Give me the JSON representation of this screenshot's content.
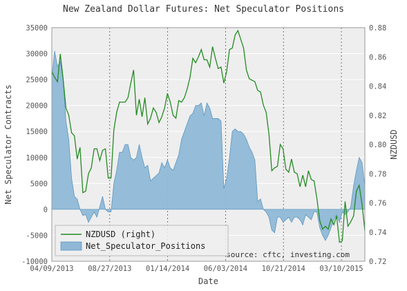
{
  "chart_data": {
    "type": "area",
    "title": "New Zealand Dollar Futures: Net Speculator Positions",
    "xlabel": "Date",
    "ylabel": "Net Speculator Contracts",
    "y2label": "NZDUSD",
    "x_tick_labels": [
      "04/09/2013",
      "08/27/2013",
      "01/14/2014",
      "06/03/2014",
      "10/21/2014",
      "03/10/2015"
    ],
    "ylim": [
      -10000,
      35000
    ],
    "y_ticks": [
      -10000,
      -5000,
      0,
      5000,
      10000,
      15000,
      20000,
      25000,
      30000,
      35000
    ],
    "y2lim": [
      0.72,
      0.88
    ],
    "y2_ticks": [
      0.72,
      0.74,
      0.76,
      0.78,
      0.8,
      0.82,
      0.84,
      0.86,
      0.88
    ],
    "grid": true,
    "legend_position": "bottom-left",
    "annotation": "source: cftc, investing.com",
    "series": [
      {
        "name": "NZDUSD (right)",
        "axis": "right",
        "style": "line",
        "color": "#228b22",
        "values": [
          0.85,
          0.846,
          0.843,
          0.862,
          0.845,
          0.825,
          0.82,
          0.808,
          0.806,
          0.79,
          0.798,
          0.767,
          0.768,
          0.78,
          0.784,
          0.797,
          0.797,
          0.789,
          0.796,
          0.797,
          0.777,
          0.777,
          0.81,
          0.822,
          0.829,
          0.829,
          0.829,
          0.832,
          0.842,
          0.851,
          0.82,
          0.831,
          0.819,
          0.832,
          0.814,
          0.818,
          0.825,
          0.822,
          0.815,
          0.819,
          0.825,
          0.835,
          0.829,
          0.82,
          0.818,
          0.83,
          0.829,
          0.832,
          0.838,
          0.846,
          0.859,
          0.856,
          0.86,
          0.865,
          0.858,
          0.858,
          0.853,
          0.867,
          0.859,
          0.852,
          0.853,
          0.842,
          0.85,
          0.865,
          0.866,
          0.875,
          0.878,
          0.872,
          0.866,
          0.851,
          0.845,
          0.844,
          0.843,
          0.837,
          0.836,
          0.827,
          0.822,
          0.807,
          0.782,
          0.784,
          0.785,
          0.8,
          0.797,
          0.783,
          0.781,
          0.79,
          0.781,
          0.78,
          0.771,
          0.779,
          0.771,
          0.782,
          0.776,
          0.775,
          0.763,
          0.748,
          0.742,
          0.744,
          0.742,
          0.749,
          0.745,
          0.751,
          0.733,
          0.734,
          0.761,
          0.744,
          0.747,
          0.751,
          0.768,
          0.772,
          0.759,
          0.741
        ]
      },
      {
        "name": "Net_Speculator_Positions",
        "axis": "left",
        "style": "area",
        "color": "#8fb8d6",
        "values": [
          25500,
          30500,
          27500,
          28500,
          25000,
          17000,
          13500,
          6000,
          2500,
          2000,
          0,
          -1200,
          -1000,
          -2500,
          -1500,
          -500,
          -1500,
          500,
          2500,
          0,
          -500,
          -500,
          5000,
          7500,
          11000,
          11000,
          12500,
          12500,
          10000,
          9500,
          10000,
          12500,
          10000,
          8000,
          8500,
          5500,
          6000,
          6500,
          7000,
          9000,
          8000,
          9500,
          8000,
          7500,
          9000,
          10500,
          13500,
          15000,
          16500,
          18000,
          18500,
          20000,
          20000,
          20500,
          18000,
          20500,
          19500,
          17500,
          17500,
          17500,
          17000,
          4000,
          6000,
          10000,
          15000,
          15500,
          15000,
          15000,
          14500,
          13500,
          12000,
          11000,
          9500,
          1500,
          2000,
          0,
          -500,
          -1500,
          -4000,
          -4500,
          -1500,
          -1500,
          -2500,
          -2000,
          -1500,
          -2500,
          -1500,
          -1500,
          -2000,
          -3000,
          -1000,
          -1500,
          -2000,
          -500,
          -500,
          -3500,
          -5000,
          -6000,
          -5000,
          -3500,
          -2000,
          -1000,
          -2500,
          -500,
          -1000,
          -500,
          500,
          4500,
          7500,
          10000,
          9000,
          4500
        ]
      }
    ]
  }
}
